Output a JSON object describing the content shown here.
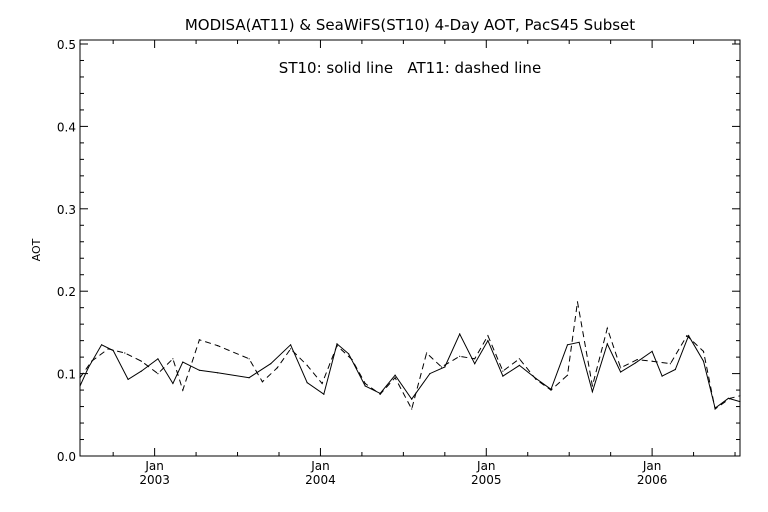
{
  "chart_data": {
    "type": "line",
    "title": "MODISA(AT11) & SeaWiFS(ST10) 4-Day AOT, PacS45 Subset",
    "annotation": "ST10: solid line   AT11: dashed line",
    "xlabel": "",
    "ylabel": "AOT",
    "ylim": [
      0.0,
      0.5
    ],
    "xlim": [
      2002.55,
      2006.53
    ],
    "yticks": [
      "0.0",
      "0.1",
      "0.2",
      "0.3",
      "0.4",
      "0.5"
    ],
    "xtick_month": [
      "Jan",
      "Jan",
      "Jan",
      "Jan"
    ],
    "xtick_year": [
      "2003",
      "2004",
      "2005",
      "2006"
    ],
    "xtick_positions": [
      2003.0,
      2004.0,
      2005.0,
      2006.0
    ],
    "grid": false,
    "series": [
      {
        "name": "ST10",
        "style": "solid",
        "color": "#000000",
        "x": [
          2002.55,
          2002.6,
          2002.68,
          2002.75,
          2002.84,
          2002.92,
          2003.02,
          2003.11,
          2003.17,
          2003.27,
          2003.38,
          2003.57,
          2003.7,
          2003.82,
          2003.92,
          2004.02,
          2004.1,
          2004.17,
          2004.27,
          2004.36,
          2004.45,
          2004.55,
          2004.66,
          2004.75,
          2004.84,
          2004.93,
          2005.01,
          2005.1,
          2005.2,
          2005.3,
          2005.39,
          2005.49,
          2005.56,
          2005.64,
          2005.73,
          2005.81,
          2005.9,
          2006.0,
          2006.06,
          2006.14,
          2006.22,
          2006.31,
          2006.38,
          2006.46,
          2006.53
        ],
        "y": [
          0.085,
          0.107,
          0.135,
          0.128,
          0.093,
          0.103,
          0.118,
          0.088,
          0.114,
          0.104,
          0.101,
          0.095,
          0.112,
          0.135,
          0.089,
          0.075,
          0.136,
          0.124,
          0.085,
          0.076,
          0.098,
          0.069,
          0.1,
          0.108,
          0.148,
          0.112,
          0.14,
          0.097,
          0.11,
          0.094,
          0.081,
          0.135,
          0.138,
          0.078,
          0.136,
          0.102,
          0.113,
          0.127,
          0.097,
          0.105,
          0.146,
          0.115,
          0.058,
          0.07,
          0.066
        ]
      },
      {
        "name": "AT11",
        "style": "dashed",
        "color": "#000000",
        "x": [
          2002.55,
          2002.62,
          2002.72,
          2002.82,
          2002.92,
          2003.02,
          2003.11,
          2003.17,
          2003.27,
          2003.38,
          2003.57,
          2003.65,
          2003.74,
          2003.82,
          2003.92,
          2004.01,
          2004.1,
          2004.19,
          2004.27,
          2004.36,
          2004.45,
          2004.55,
          2004.64,
          2004.73,
          2004.84,
          2004.93,
          2005.01,
          2005.1,
          2005.2,
          2005.3,
          2005.39,
          2005.49,
          2005.55,
          2005.64,
          2005.73,
          2005.81,
          2005.91,
          2006.0,
          2006.11,
          2006.21,
          2006.31,
          2006.38,
          2006.47,
          2006.53
        ],
        "y": [
          0.095,
          0.115,
          0.13,
          0.125,
          0.115,
          0.1,
          0.118,
          0.08,
          0.141,
          0.134,
          0.118,
          0.09,
          0.107,
          0.13,
          0.11,
          0.088,
          0.134,
          0.117,
          0.088,
          0.075,
          0.095,
          0.057,
          0.125,
          0.108,
          0.121,
          0.118,
          0.146,
          0.103,
          0.118,
          0.093,
          0.08,
          0.098,
          0.187,
          0.085,
          0.155,
          0.107,
          0.117,
          0.115,
          0.112,
          0.146,
          0.127,
          0.057,
          0.07,
          0.073
        ]
      }
    ]
  }
}
